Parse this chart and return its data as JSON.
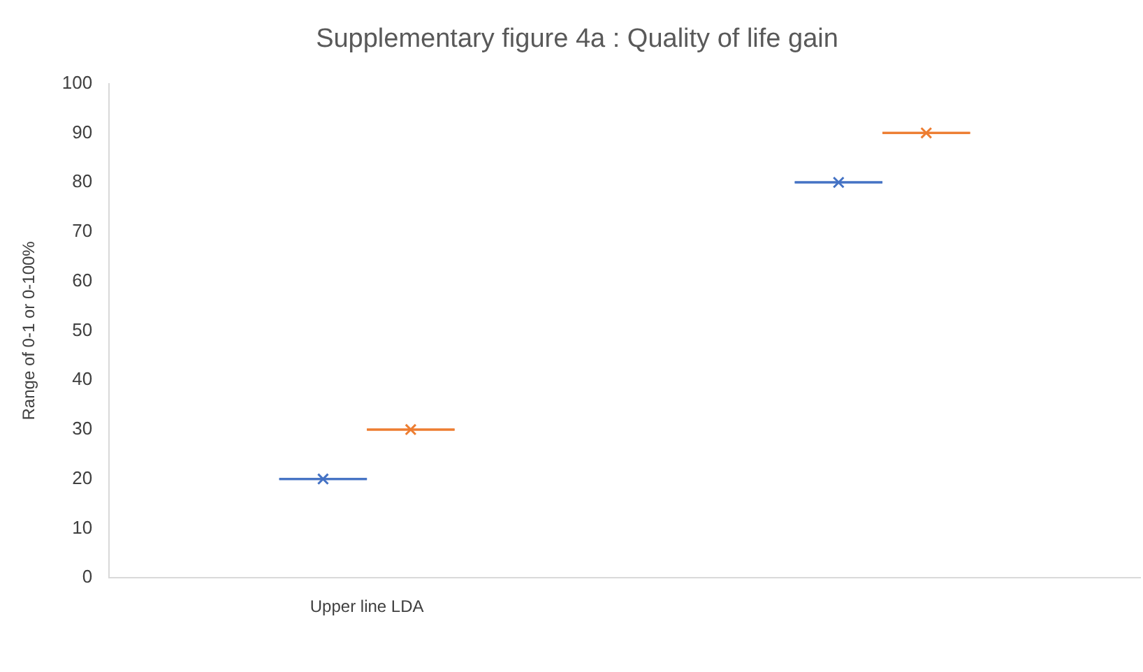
{
  "chart_data": {
    "type": "box",
    "title": "Supplementary figure 4a : Quality of life gain",
    "ylabel": "Range of 0-1 or 0-100%",
    "categories": [
      "Upper line LDA",
      null
    ],
    "series": [
      {
        "color": "#4472c4",
        "boxes": [
          {
            "low": 20,
            "q1": 20,
            "median": 20,
            "q3": 20,
            "high": 20,
            "mean": 20
          },
          {
            "low": 80,
            "q1": 80,
            "median": 80,
            "q3": 80,
            "high": 80,
            "mean": 80
          }
        ]
      },
      {
        "color": "#ed7d31",
        "boxes": [
          {
            "low": 30,
            "q1": 30,
            "median": 30,
            "q3": 30,
            "high": 30,
            "mean": 30
          },
          {
            "low": 90,
            "q1": 90,
            "median": 90,
            "q3": 90,
            "high": 90,
            "mean": 90
          }
        ]
      }
    ],
    "ylim": [
      0,
      100
    ],
    "yticks": [
      0,
      10,
      20,
      30,
      40,
      50,
      60,
      70,
      80,
      90,
      100
    ],
    "grid": false,
    "legend": false,
    "marker": "cross"
  }
}
